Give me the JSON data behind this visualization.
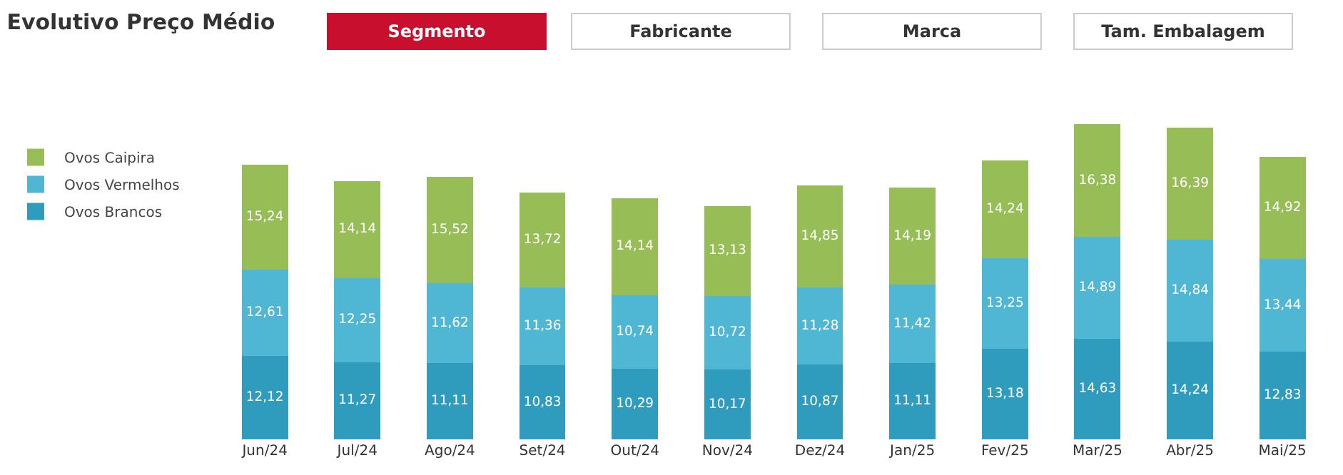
{
  "chart_data": {
    "type": "bar",
    "stacked": true,
    "title": "Evolutivo Preço Médio",
    "annotations": [
      "Segmento",
      "Fabricante",
      "Marca",
      "Tam. Embalagem"
    ],
    "categories": [
      "Jun/24",
      "Jul/24",
      "Ago/24",
      "Set/24",
      "Out/24",
      "Nov/24",
      "Dez/24",
      "Jan/25",
      "Fev/25",
      "Mar/25",
      "Abr/25",
      "Mai/25"
    ],
    "legend": "left",
    "series": [
      {
        "name": "Ovos Brancos",
        "color": "#2f9cbd",
        "values": [
          12.12,
          11.27,
          11.11,
          10.83,
          10.29,
          10.17,
          10.87,
          11.11,
          13.18,
          14.63,
          14.24,
          12.83
        ],
        "value_labels": [
          "12,12",
          "11,27",
          "11,11",
          "10,83",
          "10,29",
          "10,17",
          "10,87",
          "11,11",
          "13,18",
          "14,63",
          "14,24",
          "12,83"
        ]
      },
      {
        "name": "Ovos Vermelhos",
        "color": "#4fb6d3",
        "values": [
          12.61,
          12.25,
          11.62,
          11.36,
          10.74,
          10.72,
          11.28,
          11.42,
          13.25,
          14.89,
          14.84,
          13.44
        ],
        "value_labels": [
          "12,61",
          "12,25",
          "11,62",
          "11,36",
          "10,74",
          "10,72",
          "11,28",
          "11,42",
          "13,25",
          "14,89",
          "14,84",
          "13,44"
        ]
      },
      {
        "name": "Ovos Caipira",
        "color": "#97bd57",
        "values": [
          15.24,
          14.14,
          15.52,
          13.72,
          14.14,
          13.13,
          14.85,
          14.19,
          14.24,
          16.38,
          16.39,
          14.92
        ],
        "value_labels": [
          "15,24",
          "14,14",
          "15,52",
          "13,72",
          "14,14",
          "13,13",
          "14,85",
          "14,19",
          "14,24",
          "16,38",
          "16,39",
          "14,92"
        ]
      }
    ]
  }
}
